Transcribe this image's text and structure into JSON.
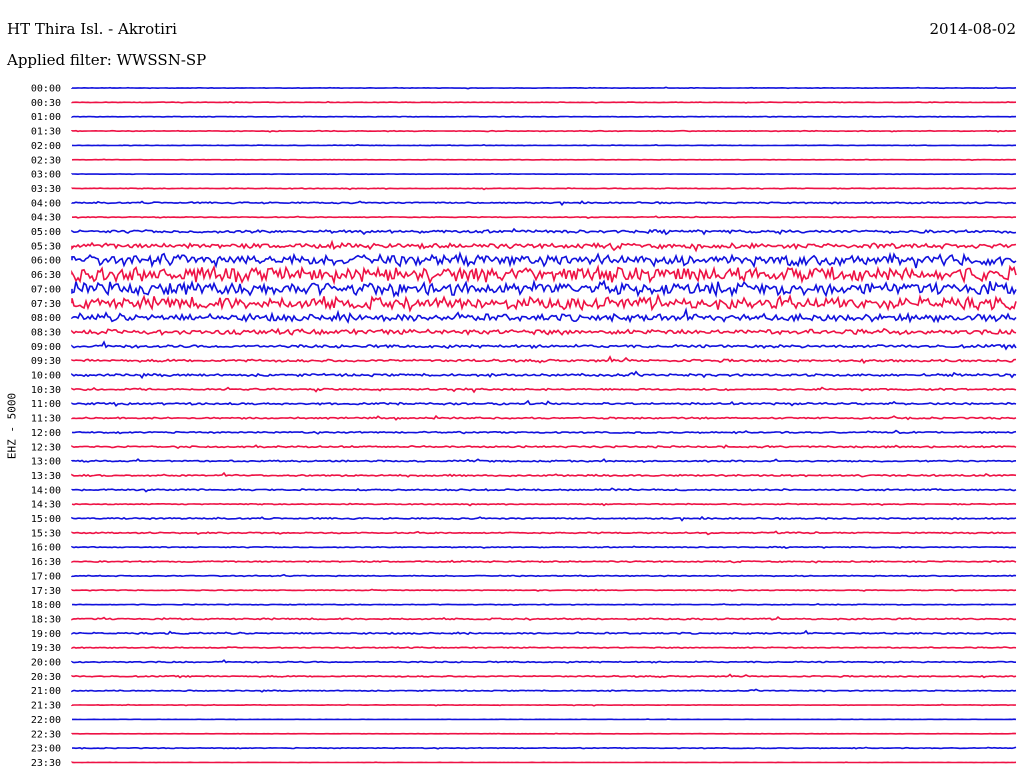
{
  "header": {
    "title": "HT Thira Isl. - Akrotiri",
    "date": "2014-08-02",
    "filter": "Applied filter: WWSSN-SP"
  },
  "chart_data": {
    "type": "line",
    "title": "HT Thira Isl. - Akrotiri",
    "ylabel": "EHZ - 5000",
    "xlabel": "",
    "colors": [
      "#1010dd",
      "#ee1144"
    ],
    "ylim": [
      "00:00",
      "23:30"
    ],
    "tick_labels": [
      "00:00",
      "00:30",
      "01:00",
      "01:30",
      "02:00",
      "02:30",
      "03:00",
      "03:30",
      "04:00",
      "04:30",
      "05:00",
      "05:30",
      "06:00",
      "06:30",
      "07:00",
      "07:30",
      "08:00",
      "08:30",
      "09:00",
      "09:30",
      "10:00",
      "10:30",
      "11:00",
      "11:30",
      "12:00",
      "12:30",
      "13:00",
      "13:30",
      "14:00",
      "14:30",
      "15:00",
      "15:30",
      "16:00",
      "16:30",
      "17:00",
      "17:30",
      "18:00",
      "18:30",
      "19:00",
      "19:30",
      "20:00",
      "20:30",
      "21:00",
      "21:30",
      "22:00",
      "22:30",
      "23:00",
      "23:30"
    ],
    "traces_amplitude": [
      0.2,
      0.2,
      0.2,
      0.3,
      0.2,
      0.15,
      0.15,
      0.3,
      0.6,
      0.3,
      1.2,
      2.0,
      4.5,
      6.0,
      5.5,
      5.0,
      3.0,
      2.0,
      1.2,
      1.0,
      1.0,
      0.7,
      0.8,
      0.6,
      0.6,
      0.7,
      0.6,
      0.7,
      0.6,
      0.4,
      0.6,
      0.5,
      0.4,
      0.5,
      0.4,
      0.3,
      0.3,
      0.6,
      0.6,
      0.4,
      0.5,
      0.5,
      0.4,
      0.2,
      0.1,
      0.1,
      0.3,
      0.1
    ],
    "grid": false
  }
}
